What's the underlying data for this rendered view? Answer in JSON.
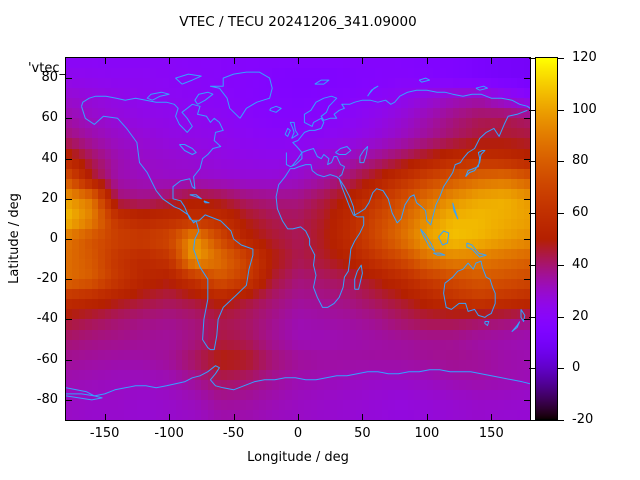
{
  "title": "VTEC / TECU 20241206_341.09000",
  "key_label": "'vtec_",
  "axes": {
    "x": {
      "label": "Longitude / deg",
      "range": [
        -180,
        180
      ],
      "ticks": [
        -150,
        -100,
        -50,
        0,
        50,
        100,
        150
      ]
    },
    "y": {
      "label": "Latitude / deg",
      "range": [
        -90,
        90
      ],
      "ticks": [
        80,
        60,
        40,
        20,
        0,
        -20,
        -40,
        -60,
        -80
      ]
    }
  },
  "colorbar": {
    "range": [
      -20,
      120
    ],
    "ticks": [
      120,
      100,
      80,
      60,
      40,
      20,
      0,
      -20
    ],
    "palette": "gnuplot rgbformulae 7,5,15 (black-violet-red-yellow)"
  },
  "colors": {
    "background": "#ffffff",
    "frame": "#000000",
    "text": "#000000",
    "coastline": "#35a2ff",
    "palette_samples": {
      "-20": "#000000",
      "20": "#8706f8",
      "40": "#a7146e",
      "60": "#c13000",
      "90": "#e27c00",
      "120": "#ffff00"
    }
  },
  "chart_data": {
    "type": "heatmap",
    "title": "VTEC / TECU 20241206_341.09000",
    "xlabel": "Longitude / deg",
    "ylabel": "Latitude / deg",
    "units": "TECU",
    "zrange": [
      -20,
      120
    ],
    "grid": false,
    "legend_position": "colorbar-right",
    "x_lon": [
      -180,
      -160,
      -140,
      -120,
      -100,
      -80,
      -60,
      -40,
      -20,
      0,
      20,
      40,
      60,
      80,
      100,
      120,
      140,
      160,
      180
    ],
    "y_lat": [
      90,
      80,
      70,
      60,
      50,
      40,
      30,
      20,
      10,
      0,
      -10,
      -20,
      -30,
      -40,
      -50,
      -60,
      -70,
      -80,
      -90
    ],
    "values": [
      [
        20,
        20,
        20,
        20,
        20,
        19,
        19,
        18,
        18,
        18,
        18,
        18,
        18,
        17,
        16,
        15,
        13,
        11,
        10
      ],
      [
        24,
        23,
        22,
        22,
        21,
        20,
        19,
        18,
        16,
        15,
        15,
        16,
        17,
        18,
        17,
        15,
        13,
        11,
        10
      ],
      [
        29,
        27,
        25,
        23,
        22,
        21,
        20,
        18,
        17,
        16,
        17,
        18,
        20,
        23,
        27,
        31,
        33,
        27,
        20
      ],
      [
        34,
        30,
        27,
        25,
        24,
        23,
        22,
        20,
        18,
        18,
        19,
        21,
        24,
        28,
        33,
        38,
        42,
        43,
        40
      ],
      [
        40,
        34,
        30,
        28,
        26,
        25,
        24,
        22,
        21,
        21,
        22,
        24,
        27,
        31,
        36,
        41,
        45,
        46,
        45
      ],
      [
        55,
        42,
        33,
        30,
        29,
        28,
        26,
        25,
        24,
        25,
        28,
        32,
        37,
        43,
        50,
        56,
        60,
        58,
        52
      ],
      [
        78,
        48,
        33,
        31,
        30,
        30,
        29,
        28,
        28,
        30,
        34,
        41,
        50,
        60,
        70,
        78,
        85,
        88,
        80
      ],
      [
        100,
        88,
        40,
        38,
        42,
        48,
        45,
        40,
        38,
        38,
        44,
        52,
        62,
        74,
        86,
        96,
        102,
        104,
        98
      ],
      [
        108,
        92,
        62,
        55,
        58,
        60,
        58,
        48,
        43,
        42,
        47,
        57,
        70,
        82,
        96,
        105,
        106,
        103,
        100
      ],
      [
        88,
        76,
        68,
        66,
        72,
        98,
        72,
        52,
        46,
        42,
        48,
        58,
        72,
        86,
        100,
        108,
        105,
        100,
        95
      ],
      [
        86,
        78,
        62,
        56,
        62,
        100,
        86,
        70,
        50,
        43,
        46,
        52,
        62,
        72,
        86,
        92,
        90,
        86,
        82
      ],
      [
        86,
        80,
        64,
        54,
        50,
        62,
        78,
        66,
        46,
        39,
        41,
        43,
        49,
        56,
        66,
        73,
        78,
        76,
        72
      ],
      [
        60,
        56,
        50,
        46,
        43,
        46,
        52,
        46,
        40,
        36,
        37,
        39,
        43,
        47,
        53,
        61,
        66,
        62,
        58
      ],
      [
        46,
        43,
        40,
        38,
        37,
        39,
        43,
        41,
        37,
        33,
        34,
        35,
        37,
        41,
        44,
        44,
        42,
        40,
        38
      ],
      [
        40,
        38,
        37,
        36,
        35,
        38,
        44,
        42,
        36,
        32,
        32,
        33,
        34,
        35,
        36,
        36,
        34,
        33,
        32
      ],
      [
        36,
        35,
        34,
        34,
        36,
        42,
        50,
        48,
        40,
        36,
        35,
        35,
        35,
        35,
        36,
        37,
        36,
        34,
        33
      ],
      [
        33,
        32,
        31,
        31,
        32,
        36,
        42,
        40,
        36,
        33,
        32,
        31,
        30,
        30,
        31,
        33,
        34,
        33,
        32
      ],
      [
        31,
        30,
        30,
        29,
        30,
        32,
        36,
        35,
        33,
        31,
        30,
        29,
        28,
        27,
        28,
        29,
        30,
        30,
        29
      ],
      [
        30,
        29,
        29,
        28,
        29,
        30,
        33,
        33,
        31,
        30,
        29,
        28,
        27,
        26,
        27,
        28,
        29,
        28,
        28
      ]
    ]
  }
}
